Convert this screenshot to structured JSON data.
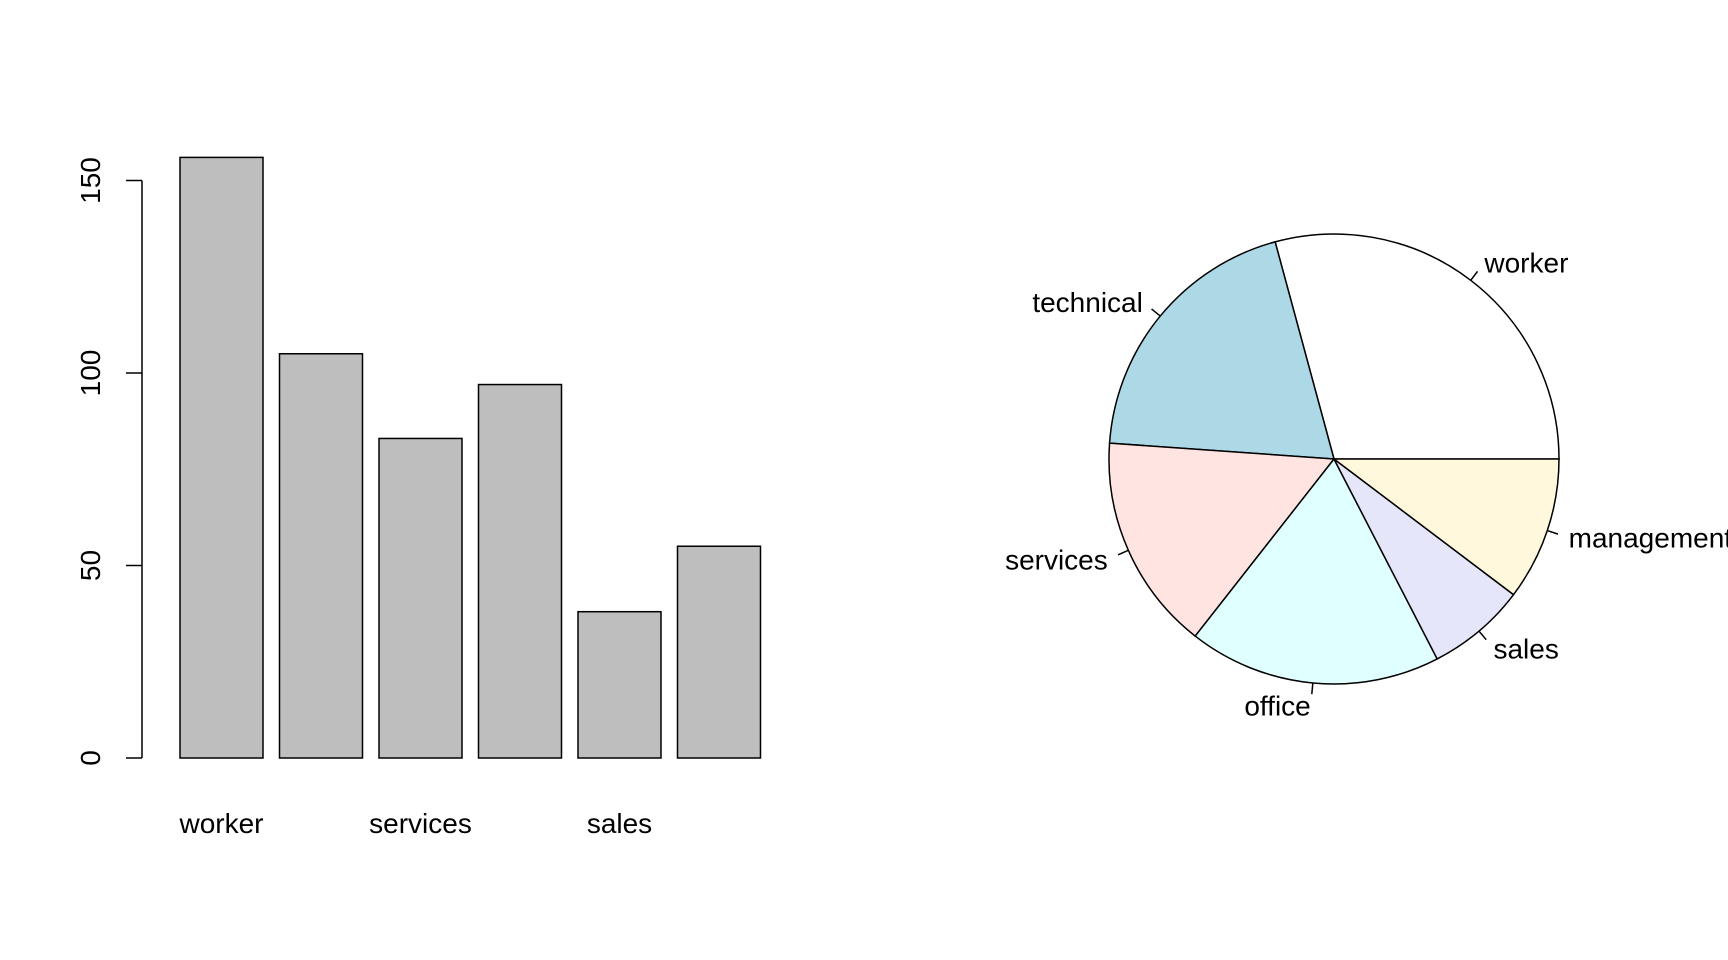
{
  "chart_data": [
    {
      "type": "bar",
      "categories": [
        "worker",
        "technical",
        "services",
        "office",
        "sales",
        "management"
      ],
      "values": [
        156,
        105,
        83,
        97,
        38,
        55
      ],
      "category_labels_shown": [
        "worker",
        "",
        "services",
        "",
        "sales",
        ""
      ],
      "ylim": [
        0,
        160
      ],
      "y_ticks": [
        0,
        50,
        100,
        150
      ],
      "bar_color": "#bebebe",
      "grid": false
    },
    {
      "type": "pie",
      "slices": [
        {
          "label": "worker",
          "value": 156,
          "color": "#ffffff"
        },
        {
          "label": "technical",
          "value": 105,
          "color": "#add8e6"
        },
        {
          "label": "services",
          "value": 83,
          "color": "#ffe4e1"
        },
        {
          "label": "office",
          "value": 97,
          "color": "#e0ffff"
        },
        {
          "label": "sales",
          "value": 38,
          "color": "#e6e6fa"
        },
        {
          "label": "management",
          "value": 55,
          "color": "#fff8dc"
        }
      ]
    }
  ]
}
